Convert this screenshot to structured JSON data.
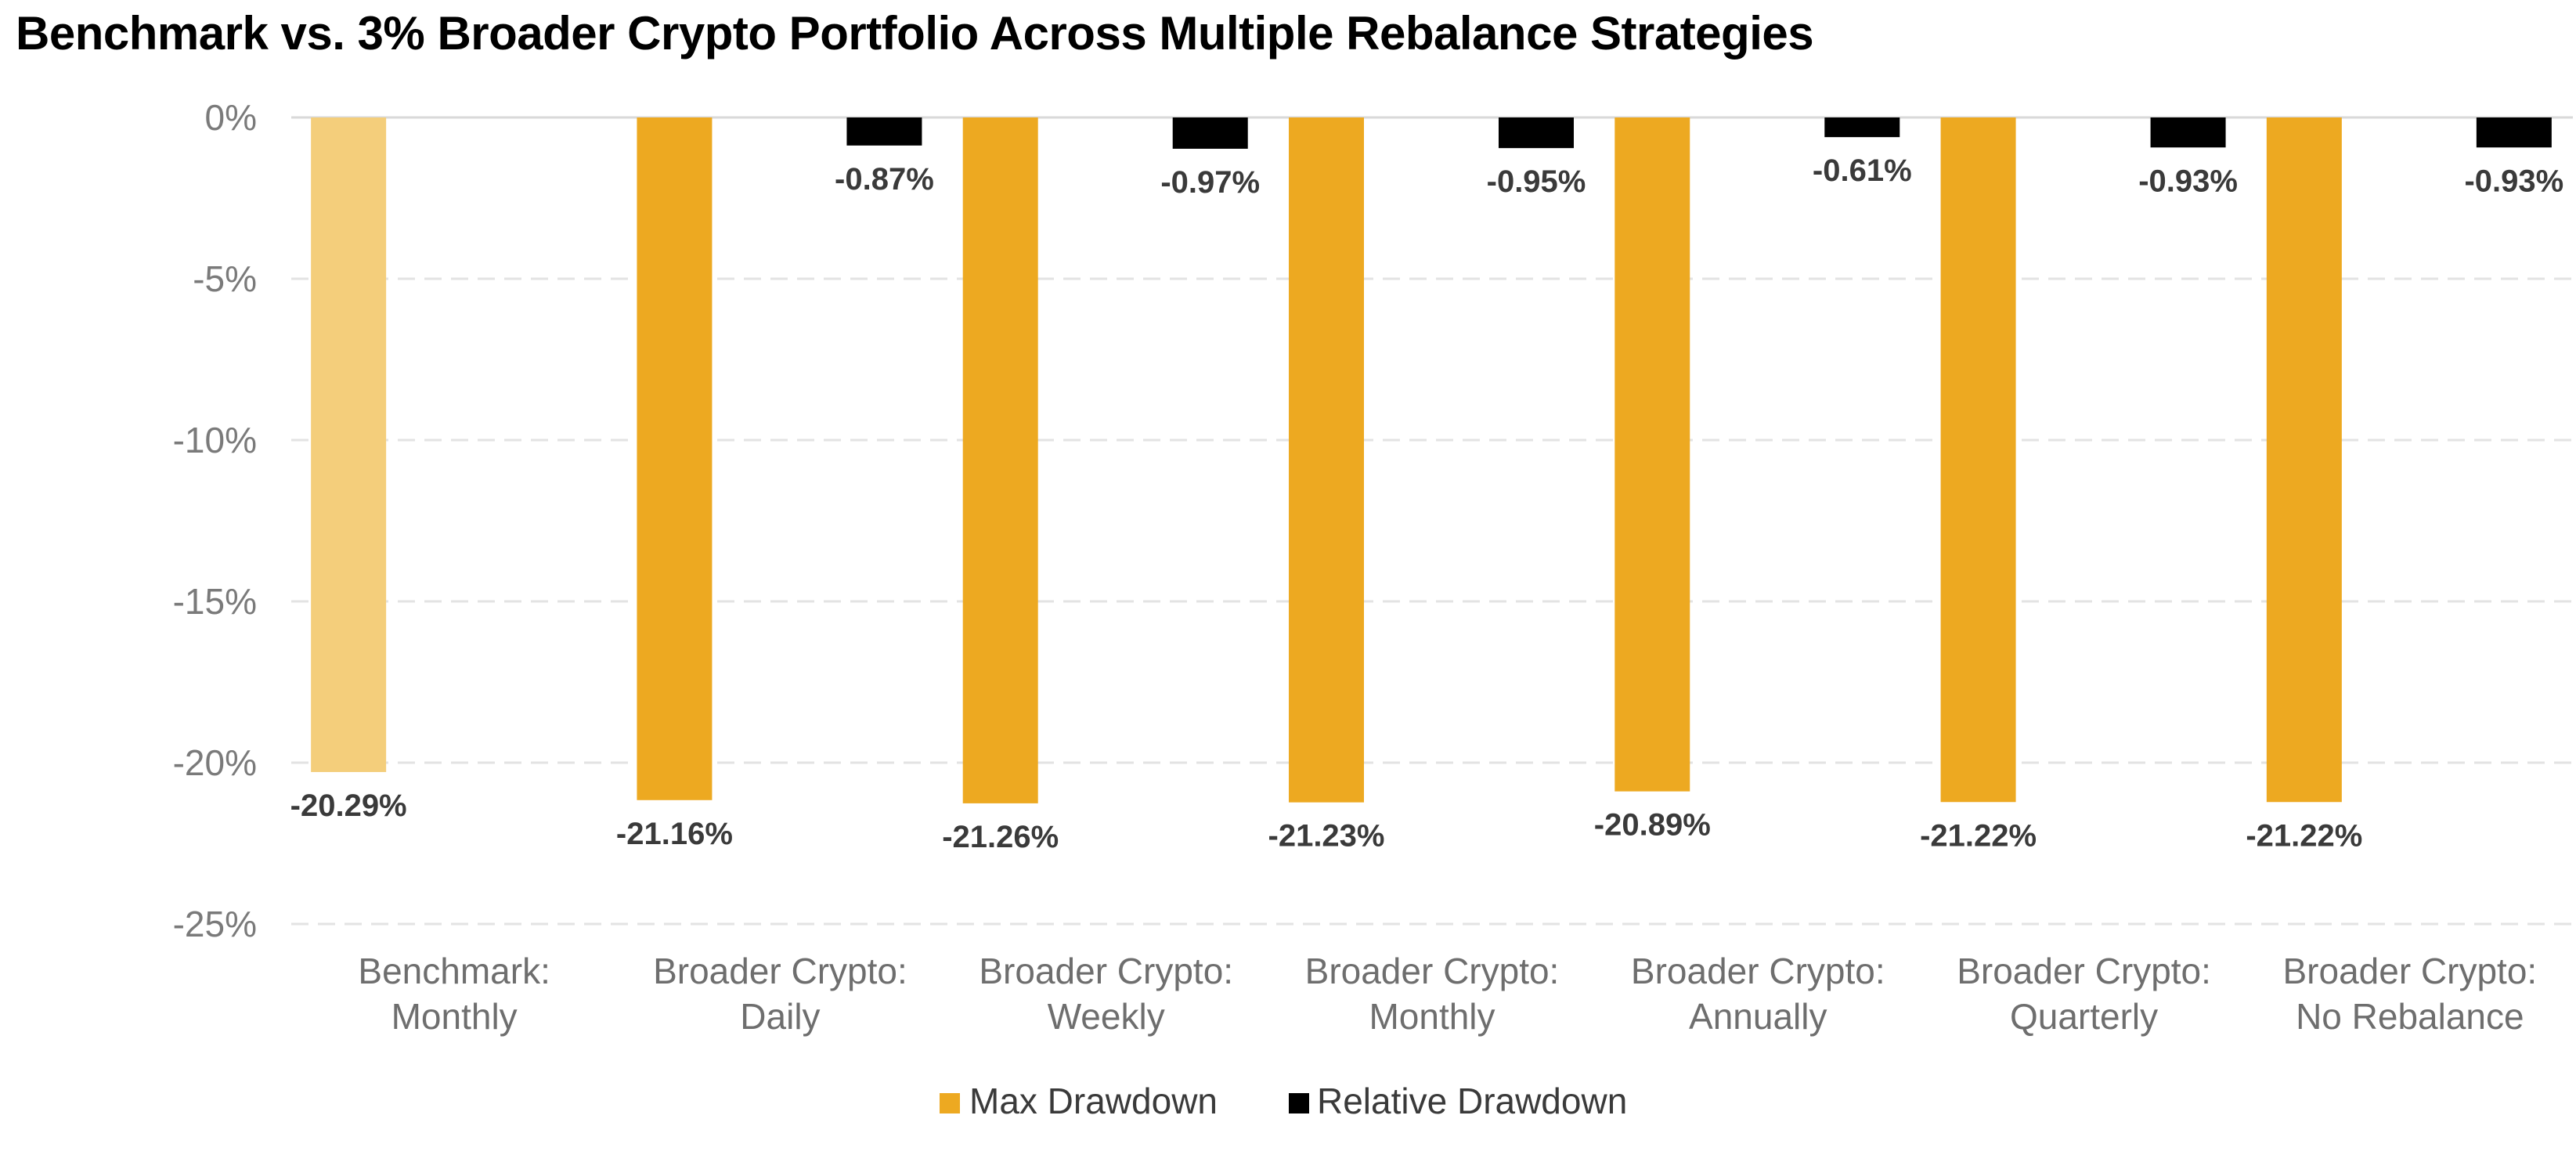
{
  "chart_data": {
    "type": "bar",
    "title": "Benchmark vs. 3% Broader Crypto Portfolio Across Multiple Rebalance Strategies",
    "categories": [
      [
        "Benchmark:",
        "Monthly"
      ],
      [
        "Broader Crypto:",
        "Daily"
      ],
      [
        "Broader Crypto:",
        "Weekly"
      ],
      [
        "Broader Crypto:",
        "Monthly"
      ],
      [
        "Broader Crypto:",
        "Annually"
      ],
      [
        "Broader Crypto:",
        "Quarterly"
      ],
      [
        "Broader Crypto:",
        "No Rebalance"
      ]
    ],
    "series": [
      {
        "name": "Max Drawdown",
        "color": "#EDA921",
        "highlight_first_color": "#F4CE7B",
        "values": [
          -20.29,
          -21.16,
          -21.26,
          -21.23,
          -20.89,
          -21.22,
          -21.22
        ],
        "labels": [
          "-20.29%",
          "-21.16%",
          "-21.26%",
          "-21.23%",
          "-20.89%",
          "-21.22%",
          "-21.22%"
        ]
      },
      {
        "name": "Relative Drawdown",
        "color": "#000000",
        "values": [
          null,
          -0.87,
          -0.97,
          -0.95,
          -0.61,
          -0.93,
          -0.93
        ],
        "labels": [
          "",
          "-0.87%",
          "-0.97%",
          "-0.95%",
          "-0.61%",
          "-0.93%",
          "-0.93%"
        ]
      }
    ],
    "ylim": [
      -25,
      0
    ],
    "yticks": [
      0,
      -5,
      -10,
      -15,
      -20,
      -25
    ],
    "ytick_labels": [
      "0%",
      "-5%",
      "-10%",
      "-15%",
      "-20%",
      "-25%"
    ],
    "xlabel": "",
    "ylabel": "",
    "grid": true,
    "legend_position": "bottom-center"
  }
}
